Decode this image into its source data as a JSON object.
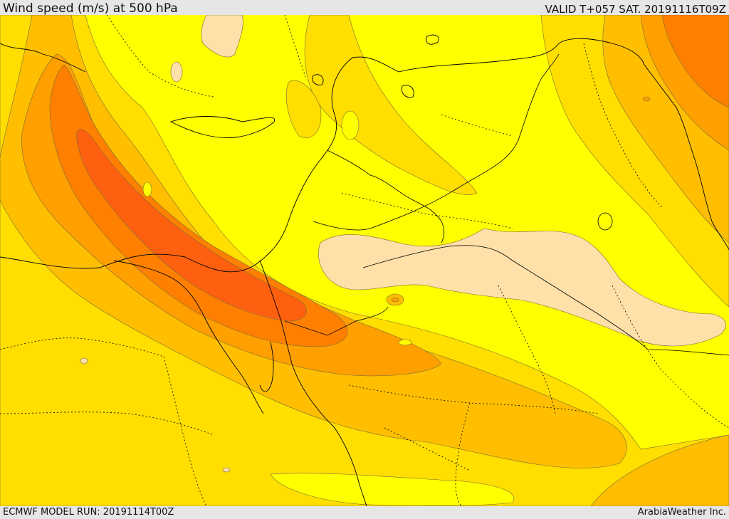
{
  "header": {
    "title": "Wind speed (m/s) at 500 hPa",
    "valid": "VALID T+057 SAT. 20191116T09Z"
  },
  "footer": {
    "model_run": "ECMWF MODEL RUN: 20191114T00Z",
    "credit": "ArabiaWeather Inc."
  },
  "map": {
    "field": "wind speed",
    "level": "500 hPa",
    "colors": {
      "background": "#ffff00",
      "band_1": "#ffde00",
      "band_2": "#ffbf00",
      "band_3": "#ff9f00",
      "band_4": "#ff8000",
      "band_5": "#ff6010",
      "calm": "#ffe0a8",
      "contour_line": "#7a6a3a",
      "border_line": "#000000"
    }
  }
}
